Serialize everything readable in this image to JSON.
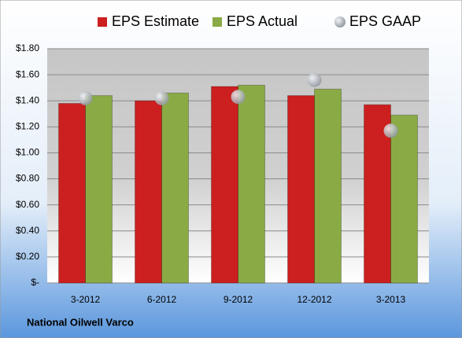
{
  "chart_data": {
    "type": "bar",
    "title": "National Oilwell Varco",
    "categories": [
      "3-2012",
      "6-2012",
      "9-2012",
      "12-2012",
      "3-2013"
    ],
    "series": [
      {
        "name": "EPS Estimate",
        "color": "#cc1f1f",
        "marker": "bar",
        "values": [
          1.38,
          1.4,
          1.51,
          1.44,
          1.37
        ]
      },
      {
        "name": "EPS Actual",
        "color": "#8aaa45",
        "marker": "bar",
        "values": [
          1.44,
          1.46,
          1.52,
          1.49,
          1.29
        ]
      },
      {
        "name": "EPS GAAP",
        "color": "#a8aeb6",
        "marker": "circle",
        "values": [
          1.42,
          1.42,
          1.43,
          1.56,
          1.17
        ]
      }
    ],
    "ylim": [
      0,
      1.8
    ],
    "yticks": [
      {
        "value": 0,
        "label": "$-"
      },
      {
        "value": 0.2,
        "label": "$0.20"
      },
      {
        "value": 0.4,
        "label": "$0.40"
      },
      {
        "value": 0.6,
        "label": "$0.60"
      },
      {
        "value": 0.8,
        "label": "$0.80"
      },
      {
        "value": 1.0,
        "label": "$1.00"
      },
      {
        "value": 1.2,
        "label": "$1.20"
      },
      {
        "value": 1.4,
        "label": "$1.40"
      },
      {
        "value": 1.6,
        "label": "$1.60"
      },
      {
        "value": 1.8,
        "label": "$1.80"
      }
    ],
    "grid": true,
    "legend": "top"
  }
}
